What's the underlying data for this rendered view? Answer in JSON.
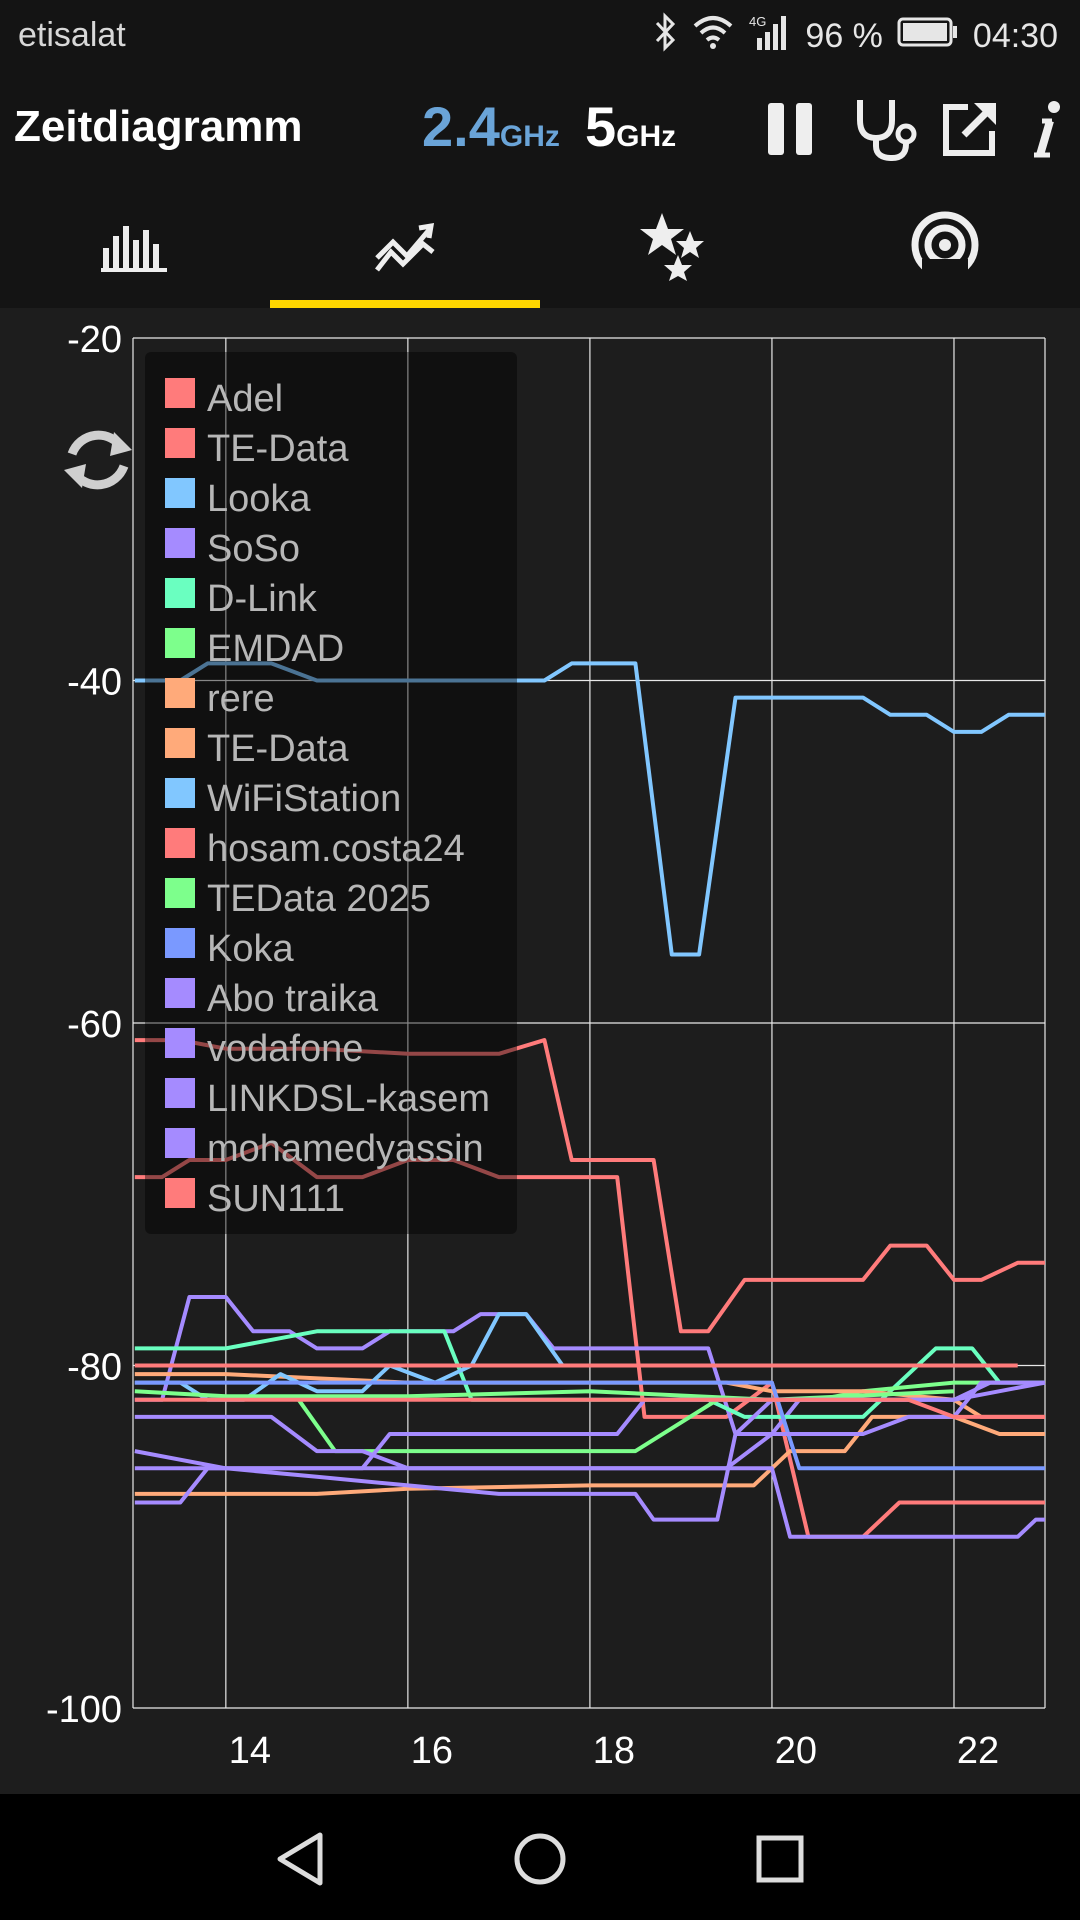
{
  "status_bar": {
    "carrier": "etisalat",
    "network_type": "4G",
    "battery": "96 %",
    "time": "04:30"
  },
  "app_bar": {
    "title": "Zeitdiagramm",
    "band_24_value": "2.4",
    "band_24_unit": "GHz",
    "band_5_value": "5",
    "band_5_unit": "GHz",
    "icons": [
      "pause-icon",
      "stethoscope-icon",
      "share-icon",
      "info-icon"
    ]
  },
  "tabs": [
    {
      "icon": "channel-graph-icon",
      "selected": false
    },
    {
      "icon": "time-graph-icon",
      "selected": true
    },
    {
      "icon": "channel-rating-icon",
      "selected": false
    },
    {
      "icon": "access-points-icon",
      "selected": false
    }
  ],
  "colors": {
    "accent": "#ffd600",
    "band_24": "#6aa4d8"
  },
  "chart_data": {
    "type": "line",
    "xlabel": "",
    "ylabel": "",
    "ylim": [
      -100,
      -20
    ],
    "xlim": [
      12.98,
      23.0
    ],
    "y_ticks": [
      "-20",
      "-40",
      "-60",
      "-80",
      "-100"
    ],
    "x_ticks": [
      "14",
      "16",
      "18",
      "20",
      "22"
    ],
    "x_tick_values": [
      14,
      16,
      18,
      20,
      22
    ],
    "grid": true,
    "legend_position": "top-left",
    "series": [
      {
        "name": "Adel",
        "color": "#ff7b7b",
        "points": [
          [
            13,
            -61
          ],
          [
            13.5,
            -61
          ],
          [
            14,
            -61.5
          ],
          [
            15,
            -61.5
          ],
          [
            16,
            -61.8
          ],
          [
            17,
            -61.8
          ],
          [
            17.5,
            -61
          ],
          [
            17.8,
            -68
          ],
          [
            18.3,
            -68
          ],
          [
            18.7,
            -68
          ],
          [
            19,
            -78
          ],
          [
            19.3,
            -78
          ],
          [
            19.7,
            -75
          ],
          [
            20.5,
            -75
          ],
          [
            21,
            -75
          ],
          [
            21.3,
            -73
          ],
          [
            21.7,
            -73
          ],
          [
            22,
            -75
          ],
          [
            22.3,
            -75
          ],
          [
            22.7,
            -74
          ],
          [
            23,
            -74
          ]
        ]
      },
      {
        "name": "TE-Data",
        "color": "#ff7b7b",
        "points": [
          [
            13,
            -69
          ],
          [
            13.3,
            -69
          ],
          [
            13.6,
            -68
          ],
          [
            14,
            -68
          ],
          [
            14.5,
            -67
          ],
          [
            15,
            -69
          ],
          [
            15.5,
            -69
          ],
          [
            16,
            -68
          ],
          [
            16.5,
            -68
          ],
          [
            17,
            -69
          ],
          [
            18,
            -69
          ],
          [
            18.3,
            -69
          ],
          [
            18.6,
            -83
          ],
          [
            19,
            -83
          ],
          [
            19.5,
            -83
          ],
          [
            20,
            -81
          ],
          [
            20.4,
            -90
          ],
          [
            21,
            -90
          ],
          [
            21.4,
            -88
          ],
          [
            22,
            -88
          ],
          [
            23,
            -88
          ]
        ]
      },
      {
        "name": "Looka",
        "color": "#81c7ff",
        "points": [
          [
            13,
            -40
          ],
          [
            13.5,
            -40
          ],
          [
            13.8,
            -39
          ],
          [
            14.5,
            -39
          ],
          [
            15,
            -40
          ],
          [
            17,
            -40
          ],
          [
            17.5,
            -40
          ],
          [
            17.8,
            -39
          ],
          [
            18.5,
            -39
          ],
          [
            18.9,
            -56
          ],
          [
            19.2,
            -56
          ],
          [
            19.6,
            -41
          ],
          [
            21,
            -41
          ],
          [
            21.3,
            -42
          ],
          [
            21.7,
            -42
          ],
          [
            22,
            -43
          ],
          [
            22.3,
            -43
          ],
          [
            22.6,
            -42
          ],
          [
            23,
            -42
          ]
        ]
      },
      {
        "name": "SoSo",
        "color": "#a58bff",
        "points": [
          [
            13,
            -82
          ],
          [
            13.3,
            -82
          ],
          [
            13.6,
            -76
          ],
          [
            14,
            -76
          ],
          [
            14.3,
            -78
          ],
          [
            14.7,
            -78
          ],
          [
            15,
            -79
          ],
          [
            15.5,
            -79
          ],
          [
            15.8,
            -78
          ],
          [
            16.5,
            -78
          ],
          [
            16.8,
            -77
          ],
          [
            17.3,
            -77
          ],
          [
            17.6,
            -79
          ],
          [
            18.5,
            -79
          ],
          [
            19.3,
            -79
          ],
          [
            19.6,
            -84
          ],
          [
            20,
            -84
          ],
          [
            20.3,
            -82
          ],
          [
            22,
            -82
          ],
          [
            22.4,
            -81
          ],
          [
            23,
            -81
          ]
        ]
      },
      {
        "name": "D-Link",
        "color": "#6affc0",
        "points": [
          [
            13,
            -79
          ],
          [
            13.4,
            -79
          ],
          [
            14,
            -79
          ],
          [
            15,
            -78
          ],
          [
            16,
            -78
          ],
          [
            16.4,
            -78
          ],
          [
            16.7,
            -82
          ],
          [
            17.5,
            -82
          ],
          [
            18.5,
            -82
          ],
          [
            19.3,
            -82
          ],
          [
            19.7,
            -83
          ],
          [
            20,
            -83
          ],
          [
            21,
            -83
          ],
          [
            21.4,
            -81
          ],
          [
            21.8,
            -79
          ],
          [
            22.2,
            -79
          ],
          [
            22.5,
            -81
          ],
          [
            23,
            -81
          ]
        ]
      },
      {
        "name": "EMDAD",
        "color": "#7dff8c",
        "points": [
          [
            14.8,
            -82
          ],
          [
            15.2,
            -85
          ],
          [
            15.8,
            -85
          ],
          [
            16,
            -85
          ],
          [
            17,
            -85
          ],
          [
            18,
            -85
          ],
          [
            18.5,
            -85
          ],
          [
            19.4,
            -82
          ],
          [
            20,
            -82
          ],
          [
            20.5,
            -82
          ],
          [
            21,
            -81.5
          ],
          [
            22,
            -81
          ],
          [
            22.5,
            -81
          ]
        ]
      },
      {
        "name": "rere",
        "color": "#ffaa7a",
        "points": [
          [
            13,
            -87.5
          ],
          [
            15,
            -87.5
          ],
          [
            16,
            -87.2
          ],
          [
            18,
            -87
          ],
          [
            19,
            -87
          ],
          [
            19.8,
            -87
          ],
          [
            20.2,
            -85
          ],
          [
            20.5,
            -85
          ],
          [
            20.8,
            -85
          ],
          [
            21.1,
            -83
          ],
          [
            22,
            -83
          ],
          [
            22.5,
            -84
          ],
          [
            23,
            -84
          ]
        ]
      },
      {
        "name": "TE-Data",
        "color": "#ffaa7a",
        "points": [
          [
            13,
            -80.5
          ],
          [
            14,
            -80.5
          ],
          [
            16,
            -81
          ],
          [
            18,
            -81
          ],
          [
            19.5,
            -81
          ],
          [
            20,
            -81.5
          ],
          [
            21,
            -81.5
          ],
          [
            22,
            -82
          ],
          [
            22.3,
            -83
          ],
          [
            23,
            -83
          ]
        ]
      },
      {
        "name": "WiFiStation",
        "color": "#81c7ff",
        "points": [
          [
            13,
            -81
          ],
          [
            13.5,
            -81
          ],
          [
            13.8,
            -82
          ],
          [
            14.2,
            -82
          ],
          [
            14.6,
            -80.5
          ],
          [
            15,
            -81.5
          ],
          [
            15.5,
            -81.5
          ],
          [
            15.8,
            -80
          ],
          [
            16.3,
            -81
          ],
          [
            16.7,
            -80
          ],
          [
            17,
            -77
          ],
          [
            17.3,
            -77
          ],
          [
            17.7,
            -80
          ],
          [
            18,
            -80
          ]
        ]
      },
      {
        "name": "hosam.costa24",
        "color": "#ff7b7b",
        "points": [
          [
            13,
            -80
          ],
          [
            14,
            -80
          ],
          [
            16,
            -80
          ],
          [
            18,
            -80
          ],
          [
            20,
            -80
          ],
          [
            22,
            -80
          ],
          [
            22.7,
            -80
          ]
        ]
      },
      {
        "name": "TEData 2025",
        "color": "#7dff8c",
        "points": [
          [
            13,
            -81.5
          ],
          [
            14,
            -81.8
          ],
          [
            16,
            -81.8
          ],
          [
            18,
            -81.5
          ],
          [
            20,
            -82
          ],
          [
            22,
            -81.5
          ]
        ]
      },
      {
        "name": "Koka",
        "color": "#7a99ff",
        "points": [
          [
            13,
            -81
          ],
          [
            14,
            -81
          ],
          [
            16,
            -81
          ],
          [
            17,
            -81
          ],
          [
            18,
            -81
          ],
          [
            19.2,
            -81
          ],
          [
            20,
            -81
          ],
          [
            20.3,
            -86
          ],
          [
            21,
            -86
          ],
          [
            22,
            -86
          ],
          [
            23,
            -86
          ]
        ]
      },
      {
        "name": "Abo traika",
        "color": "#a58bff",
        "points": [
          [
            13,
            -83
          ],
          [
            14,
            -83
          ],
          [
            14.5,
            -83
          ],
          [
            15,
            -85
          ],
          [
            15.5,
            -85
          ],
          [
            16,
            -86
          ],
          [
            17,
            -86
          ],
          [
            18,
            -86
          ],
          [
            18.5,
            -86
          ],
          [
            19,
            -86
          ],
          [
            19.5,
            -86
          ],
          [
            20,
            -84
          ],
          [
            20.5,
            -84
          ],
          [
            21,
            -84
          ],
          [
            21.5,
            -83
          ],
          [
            22,
            -83
          ],
          [
            22.3,
            -81
          ],
          [
            23,
            -81
          ]
        ]
      },
      {
        "name": "vodafone",
        "color": "#a58bff",
        "points": [
          [
            13,
            -85
          ],
          [
            14,
            -86
          ],
          [
            15,
            -86.5
          ],
          [
            16,
            -87
          ],
          [
            17,
            -87.5
          ],
          [
            18,
            -87.5
          ],
          [
            18.5,
            -87.5
          ],
          [
            18.7,
            -89
          ],
          [
            19,
            -89
          ],
          [
            19.4,
            -89
          ],
          [
            19.6,
            -84
          ],
          [
            20,
            -82
          ],
          [
            21,
            -82
          ],
          [
            21.5,
            -82
          ],
          [
            22,
            -82
          ],
          [
            23,
            -81
          ]
        ]
      },
      {
        "name": "LINKDSL-kasem",
        "color": "#a58bff",
        "points": [
          [
            13,
            -88
          ],
          [
            13.5,
            -88
          ],
          [
            13.8,
            -86
          ],
          [
            14.5,
            -86
          ],
          [
            15,
            -86
          ],
          [
            15.5,
            -86
          ],
          [
            15.8,
            -84
          ],
          [
            16.3,
            -84
          ],
          [
            16.6,
            -84
          ],
          [
            17,
            -84
          ],
          [
            17.7,
            -84
          ],
          [
            18.3,
            -84
          ],
          [
            18.6,
            -82
          ],
          [
            19.6,
            -82
          ],
          [
            20,
            -82
          ],
          [
            21,
            -82
          ],
          [
            21.5,
            -82
          ],
          [
            22,
            -82
          ]
        ]
      },
      {
        "name": "mohamedyassin",
        "color": "#a58bff",
        "points": [
          [
            13,
            -86
          ],
          [
            15,
            -86
          ],
          [
            16,
            -86
          ],
          [
            17,
            -86
          ],
          [
            18,
            -86
          ],
          [
            19,
            -86
          ],
          [
            20,
            -86
          ],
          [
            20.2,
            -90
          ],
          [
            21,
            -90
          ],
          [
            22,
            -90
          ],
          [
            22.7,
            -90
          ],
          [
            22.9,
            -89
          ],
          [
            23,
            -89
          ]
        ]
      },
      {
        "name": "SUN111",
        "color": "#ff7b7b",
        "points": [
          [
            13,
            -82
          ],
          [
            14,
            -82
          ],
          [
            16,
            -82
          ],
          [
            18,
            -82
          ],
          [
            19,
            -82
          ],
          [
            20,
            -82
          ],
          [
            21,
            -82
          ],
          [
            21.5,
            -82
          ],
          [
            22,
            -83
          ],
          [
            23,
            -83
          ]
        ]
      }
    ]
  }
}
